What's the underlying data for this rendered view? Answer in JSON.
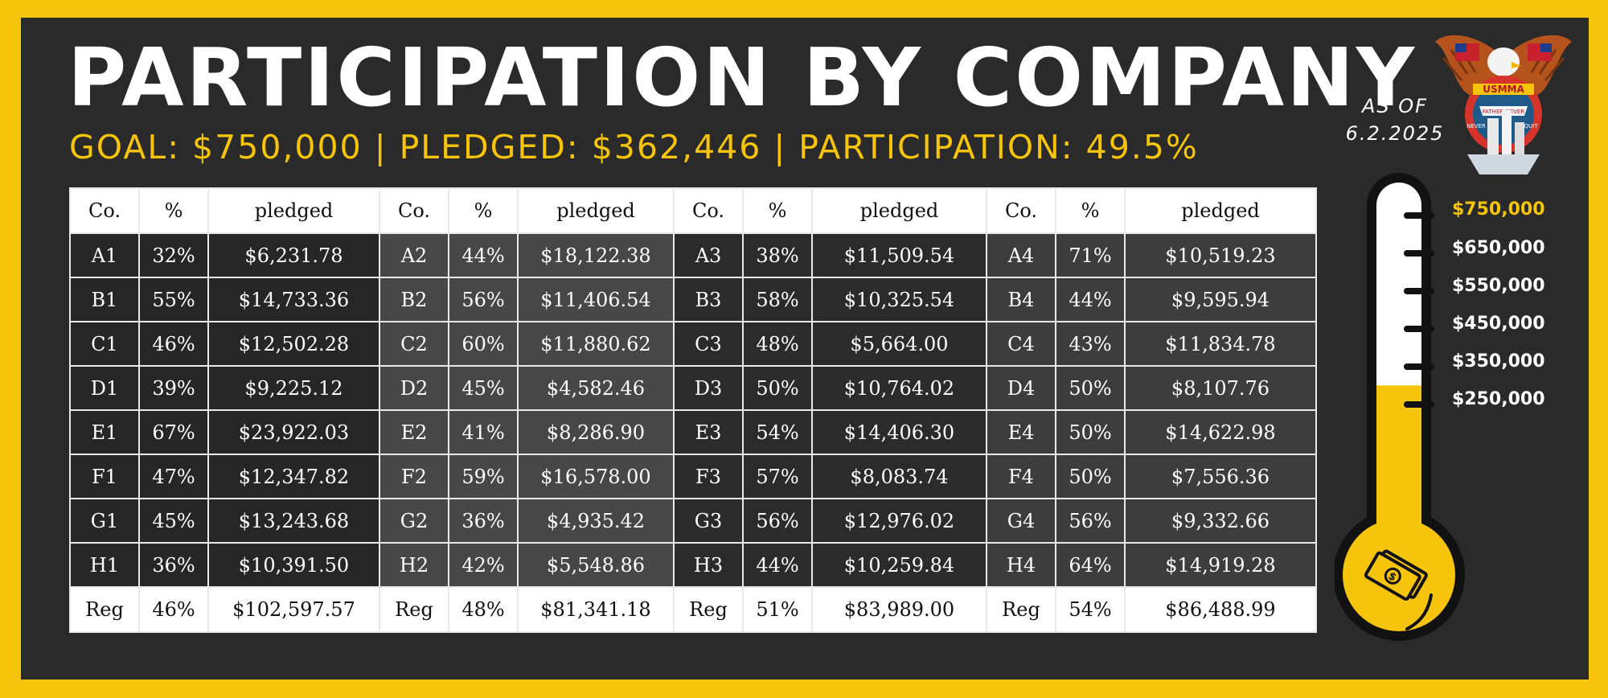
{
  "header": {
    "title": "PARTICIPATION BY COMPANY",
    "subtitle": "GOAL: $750,000 | PLEDGED: $362,446 | PARTICIPATION: 49.5%"
  },
  "as_of": {
    "line1": "AS OF",
    "line2": "6.2.2025"
  },
  "logo": {
    "text_top": "USMMA",
    "text_banner": "FATHER NEVER",
    "text_left": "NEVER",
    "text_right": "QUIT"
  },
  "table": {
    "headers": [
      "Co.",
      "%",
      "pledged",
      "Co.",
      "%",
      "pledged",
      "Co.",
      "%",
      "pledged",
      "Co.",
      "%",
      "pledged"
    ],
    "rows": [
      [
        "A1",
        "32%",
        "$6,231.78",
        "A2",
        "44%",
        "$18,122.38",
        "A3",
        "38%",
        "$11,509.54",
        "A4",
        "71%",
        "$10,519.23"
      ],
      [
        "B1",
        "55%",
        "$14,733.36",
        "B2",
        "56%",
        "$11,406.54",
        "B3",
        "58%",
        "$10,325.54",
        "B4",
        "44%",
        "$9,595.94"
      ],
      [
        "C1",
        "46%",
        "$12,502.28",
        "C2",
        "60%",
        "$11,880.62",
        "C3",
        "48%",
        "$5,664.00",
        "C4",
        "43%",
        "$11,834.78"
      ],
      [
        "D1",
        "39%",
        "$9,225.12",
        "D2",
        "45%",
        "$4,582.46",
        "D3",
        "50%",
        "$10,764.02",
        "D4",
        "50%",
        "$8,107.76"
      ],
      [
        "E1",
        "67%",
        "$23,922.03",
        "E2",
        "41%",
        "$8,286.90",
        "E3",
        "54%",
        "$14,406.30",
        "E4",
        "50%",
        "$14,622.98"
      ],
      [
        "F1",
        "47%",
        "$12,347.82",
        "F2",
        "59%",
        "$16,578.00",
        "F3",
        "57%",
        "$8,083.74",
        "F4",
        "50%",
        "$7,556.36"
      ],
      [
        "G1",
        "45%",
        "$13,243.68",
        "G2",
        "36%",
        "$4,935.42",
        "G3",
        "56%",
        "$12,976.02",
        "G4",
        "56%",
        "$9,332.66"
      ],
      [
        "H1",
        "36%",
        "$10,391.50",
        "H2",
        "42%",
        "$5,548.86",
        "H3",
        "44%",
        "$10,259.84",
        "H4",
        "64%",
        "$14,919.28"
      ]
    ],
    "footer": [
      "Reg",
      "46%",
      "$102,597.57",
      "Reg",
      "48%",
      "$81,341.18",
      "Reg",
      "51%",
      "$83,989.00",
      "Reg",
      "54%",
      "$86,488.99"
    ]
  },
  "thermometer": {
    "levels": [
      "$750,000",
      "$650,000",
      "$550,000",
      "$450,000",
      "$350,000",
      "$250,000"
    ],
    "fill_fraction": 0.483,
    "fill_color": "#f6c40b",
    "icon": "money-bills-icon"
  },
  "colors": {
    "accent": "#f6c40b",
    "panel": "#2a2a2a"
  }
}
